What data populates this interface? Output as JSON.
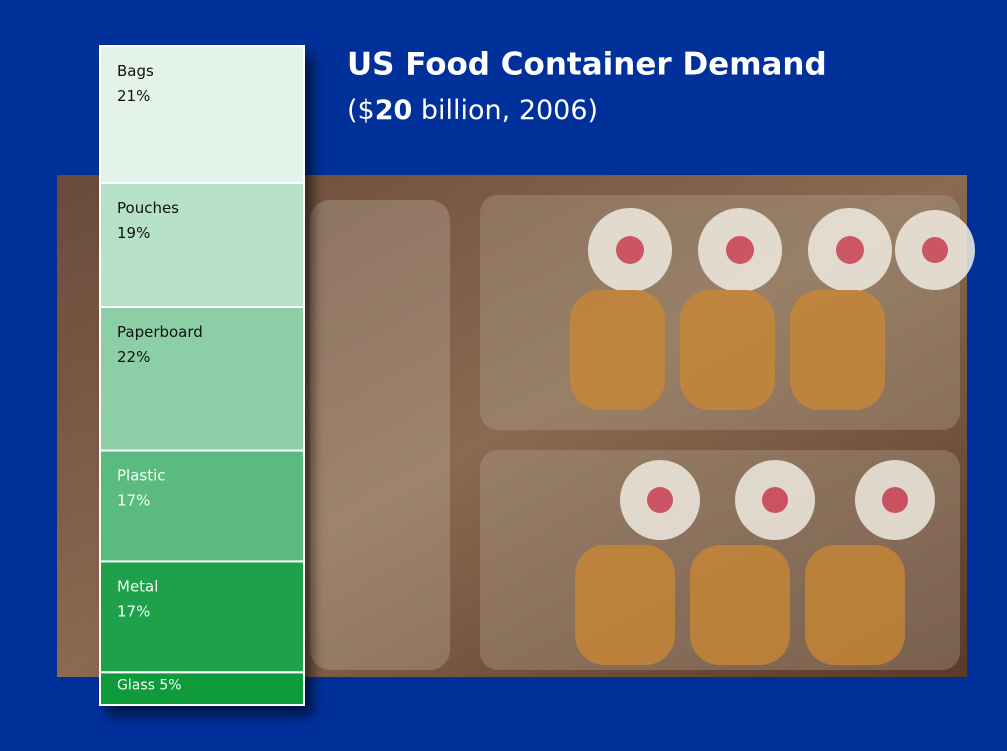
{
  "chart_data": {
    "type": "stacked_bar",
    "title": "US Food Container Demand",
    "subtitle": [
      "($",
      "20",
      " billion, 2006)"
    ],
    "categories": [
      "Bags",
      "Pouches",
      "Paperboard",
      "Plastic",
      "Metal",
      "Glass"
    ],
    "values": [
      21,
      19,
      22,
      17,
      17,
      5
    ],
    "value_labels": [
      "21%",
      "19%",
      "22%",
      "17%",
      "17%",
      "5%"
    ],
    "colors": [
      "#e4f3ea",
      "#b6e1c6",
      "#8ccfa6",
      "#5bbb7e",
      "#1fa04b",
      "#0f9a3b"
    ]
  }
}
